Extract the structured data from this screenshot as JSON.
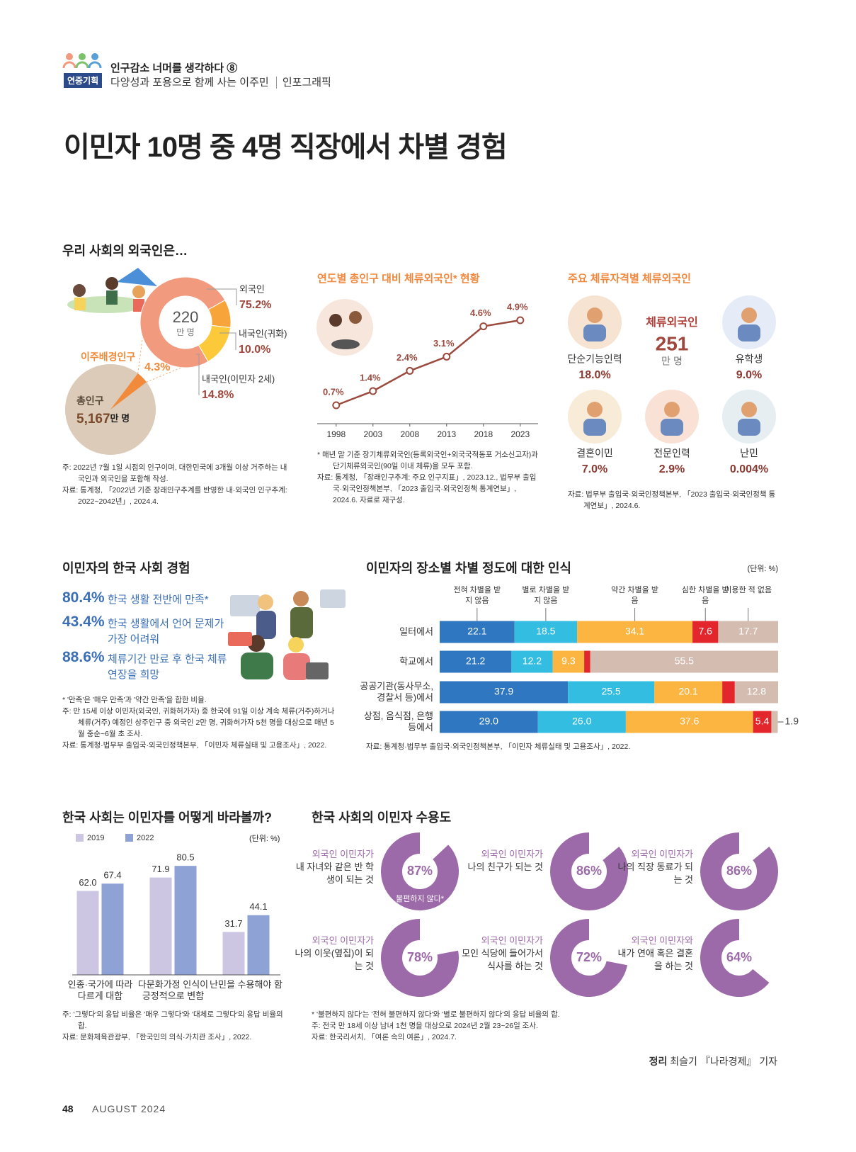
{
  "header": {
    "series_title": "인구감소 너머를 생각하다 ⑧",
    "badge": "연중기획",
    "subtitle": "다양성과 포용으로 함께 사는 이주민",
    "category": "인포그래픽"
  },
  "title": "이민자 10명 중 4명 직장에서 차별 경험",
  "stay": {
    "title": "주요 체류자격별 체류외국인",
    "center_label": "체류외국인",
    "center_value": "251",
    "center_unit": "만 명",
    "categories": [
      "단순기능인력",
      "유학생",
      "결혼이민",
      "전문인력",
      "난민"
    ],
    "shares": [
      "18.0%",
      "9.0%",
      "7.0%",
      "2.9%",
      "0.004%"
    ],
    "notes": [
      "자료: 법무부 출입국·외국인정책본부, 「2023 출입국·외국인정책 통계연보」, 2024.6."
    ]
  },
  "experience": {
    "title": "이민자의 한국 사회 경험",
    "items": [
      {
        "value": "80.4%",
        "text": "한국 생활 전반에 만족*"
      },
      {
        "value": "43.4%",
        "text": "한국 생활에서 언어 문제가 가장 어려워"
      },
      {
        "value": "88.6%",
        "text": "체류기간 만료 후 한국 체류 연장을 희망"
      }
    ],
    "notes": [
      "* '만족'은 '매우 만족'과 '약간 만족'을 합한 비율.",
      "주: 만 15세 이상 이민자(외국인, 귀화허가자) 중 한국에 91일 이상 계속 체류(거주)하거나 체류(거주) 예정인 상주인구 중 외국인 2만 명, 귀화허가자 5천 명을 대상으로 매년 5월 중순~6월 초 조사.",
      "자료: 통계청·법무부 출입국·외국인정책본부, 「이민자 체류실태 및 고용조사」, 2022."
    ]
  },
  "chart_data": [
    {
      "type": "donut",
      "title": "우리 사회의 외국인은…",
      "center_value": "220",
      "center_unit": "만 명",
      "categories": [
        "외국인",
        "내국인(귀화)",
        "내국인(이민자 2세)"
      ],
      "values": [
        75.2,
        10.0,
        14.8
      ],
      "value_labels": [
        "75.2%",
        "10.0%",
        "14.8%"
      ],
      "colors": [
        "#f29a7e",
        "#f7a43a",
        "#fcc93a"
      ],
      "total": {
        "label": "총인구",
        "value": "5,167",
        "unit": "만 명",
        "color": "#dccbb8"
      },
      "share": {
        "label": "이주배경인구",
        "value": 4.3,
        "value_label": "4.3%",
        "color": "#f18a3a"
      },
      "notes": [
        "주: 2022년 7월 1일 시점의 인구이며, 대한민국에 3개월 이상 거주하는 내국인과 외국인을 포함해 작성.",
        "자료: 통계청, 「2022년 기준 장래인구추계를 반영한 내·외국인 인구추계: 2022~2042년」, 2024.4."
      ]
    },
    {
      "type": "line",
      "title": "연도별 총인구 대비 체류외국인* 현황",
      "x": [
        1998,
        2003,
        2008,
        2013,
        2018,
        2023
      ],
      "values": [
        0.7,
        1.4,
        2.4,
        3.1,
        4.6,
        4.9
      ],
      "value_labels": [
        "0.7%",
        "1.4%",
        "2.4%",
        "3.1%",
        "4.6%",
        "4.9%"
      ],
      "color": "#9b4a3e",
      "xlim": [
        1996,
        2026
      ],
      "xticks": [
        1998,
        2003,
        2008,
        2013,
        2018,
        2023
      ],
      "ylim": [
        0,
        5.6
      ],
      "notes": [
        "* 매년 말 기준 장기체류외국인(등록외국인+외국국적동포 거소신고자)과 단기체류외국인(90일 이내 체류)을 모두 포함.",
        "자료: 통계청, 「장래인구추계: 주요 인구지표」, 2023.12., 법무부 출입국·외국인정책본부, 「2023 출입국·외국인정책 통계연보」, 2024.6. 자료로 재구성."
      ]
    },
    {
      "type": "stackedbar",
      "title": "이민자의 장소별 차별 정도에 대한 인식",
      "unit": "(단위: %)",
      "categories": [
        "일터에서",
        "학교에서",
        "공공기관(동사무소, 경찰서 등)에서",
        "상점, 음식점, 은행 등에서"
      ],
      "series": [
        {
          "name": "전혀 차별을 받지 않음",
          "color": "#2f77c0",
          "values": [
            22.1,
            21.2,
            37.9,
            29.0
          ],
          "value_labels": [
            "22.1",
            "21.2",
            "37.9",
            "29.0"
          ]
        },
        {
          "name": "별로 차별을 받지 않음",
          "color": "#33bde0",
          "values": [
            18.5,
            12.2,
            25.5,
            26.0
          ],
          "value_labels": [
            "18.5",
            "12.2",
            "25.5",
            "26.0"
          ]
        },
        {
          "name": "약간 차별을 받음",
          "color": "#fbb540",
          "values": [
            34.1,
            9.3,
            20.1,
            37.6
          ]
        },
        {
          "name": "심한 차별을 받음",
          "color": "#e3262b",
          "values": [
            7.6,
            1.8,
            3.7,
            5.4
          ]
        },
        {
          "name": "이용한 적 없음",
          "color": "#d5bcb0",
          "values": [
            17.7,
            55.5,
            12.8,
            1.9
          ]
        }
      ],
      "xlim": [
        0,
        100
      ],
      "notes": [
        "자료: 통계청·법무부 출입국·외국인정책본부, 「이민자 체류실태 및 고용조사」, 2022."
      ]
    },
    {
      "type": "bar",
      "title": "한국 사회는 이민자를 어떻게 바라볼까?",
      "unit": "(단위: %)",
      "categories": [
        "인종·국가에 따라 다르게 대함",
        "다문화가정 인식이 긍정적으로 변함",
        "난민을 수용해야 함"
      ],
      "series": [
        {
          "name": "2019",
          "color": "#cdc6e3",
          "values": [
            62.0,
            71.9,
            31.7
          ],
          "value_labels": [
            "62.0",
            "71.9",
            "31.7"
          ]
        },
        {
          "name": "2022",
          "color": "#8ea2d6",
          "values": [
            67.4,
            80.5,
            44.1
          ]
        }
      ],
      "ylim": [
        0,
        90
      ],
      "notes": [
        "주: '그렇다'의 응답 비율은 '매우 그렇다'와 '대체로 그렇다'의 응답 비율의 합.",
        "자료: 문화체육관광부, 「한국인의 의식·가치관 조사」, 2022."
      ]
    },
    {
      "type": "gauge",
      "title": "한국 사회의 이민자 수용도",
      "color": "#9c6aa8",
      "annotation": "불편하지 않다*",
      "subjects": [
        "외국인 이민자가",
        "외국인 이민자가",
        "외국인 이민자가",
        "외국인 이민자가",
        "외국인 이민자가",
        "외국인 이민자와"
      ],
      "categories": [
        "내 자녀와 같은 반 학생이 되는 것",
        "나의 친구가 되는 것",
        "나의 직장 동료가 되는 것",
        "나의 이웃(옆집)이 되는 것",
        "모인 식당에 들어가서 식사를 하는 것",
        "내가 연애 혹은 결혼을 하는 것"
      ],
      "values": [
        87,
        86,
        86,
        78,
        72,
        64
      ],
      "value_labels": [
        "87%",
        "86%",
        "86%",
        "78%",
        "72%",
        "64%"
      ],
      "notes": [
        "* '불편하지 않다'는 '전혀 불편하지 않다'와 '별로 불편하지 않다'의 응답 비율의 합.",
        "주: 전국 만 18세 이상 남녀 1천 명을 대상으로 2024년 2월 23~26일 조사.",
        "자료: 한국리서치, 「여론 속의 여론」, 2024.7."
      ]
    }
  ],
  "footer": {
    "credit_role": "정리",
    "credit": "최슬기 『나라경제』 기자",
    "page": "48",
    "issue": "AUGUST 2024"
  }
}
